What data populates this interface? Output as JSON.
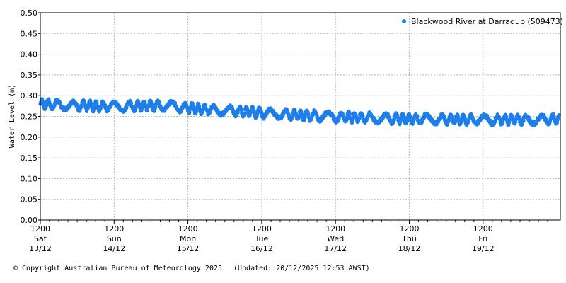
{
  "chart_data": {
    "type": "scatter",
    "title": "",
    "ylabel": "Water Level (m)",
    "xlabel": "",
    "ylim": [
      0,
      0.5
    ],
    "yticks": [
      "0.00",
      "0.05",
      "0.10",
      "0.15",
      "0.20",
      "0.25",
      "0.30",
      "0.35",
      "0.40",
      "0.45",
      "0.50"
    ],
    "xlim": [
      "2025-12-13 12:00",
      "2025-12-20 12:50"
    ],
    "xticks": [
      {
        "time": "1200",
        "day": "Sat",
        "date": "13/12"
      },
      {
        "time": "1200",
        "day": "Sun",
        "date": "14/12"
      },
      {
        "time": "1200",
        "day": "Mon",
        "date": "15/12"
      },
      {
        "time": "1200",
        "day": "Tue",
        "date": "16/12"
      },
      {
        "time": "1200",
        "day": "Wed",
        "date": "17/12"
      },
      {
        "time": "1200",
        "day": "Thu",
        "date": "18/12"
      },
      {
        "time": "1200",
        "day": "Fri",
        "date": "19/12"
      }
    ],
    "grid": true,
    "legend_position": "top-right",
    "series": [
      {
        "name": "Blackwood River at Darradup (509473)",
        "color": "#1f7fe8",
        "x": [
          "13/12 12:00",
          "13/12 18:00",
          "14/12 00:00",
          "14/12 06:00",
          "14/12 12:00",
          "14/12 18:00",
          "15/12 00:00",
          "15/12 06:00",
          "15/12 12:00",
          "15/12 18:00",
          "16/12 00:00",
          "16/12 06:00",
          "16/12 12:00",
          "16/12 18:00",
          "17/12 00:00",
          "17/12 06:00",
          "17/12 12:00",
          "17/12 18:00",
          "18/12 00:00",
          "18/12 06:00",
          "18/12 12:00",
          "18/12 18:00",
          "19/12 00:00",
          "19/12 06:00",
          "19/12 12:00",
          "19/12 18:00",
          "20/12 00:00",
          "20/12 06:00",
          "20/12 12:00"
        ],
        "y": [
          0.28,
          0.278,
          0.276,
          0.275,
          0.274,
          0.275,
          0.276,
          0.275,
          0.271,
          0.267,
          0.264,
          0.262,
          0.258,
          0.256,
          0.253,
          0.251,
          0.249,
          0.248,
          0.246,
          0.245,
          0.244,
          0.244,
          0.243,
          0.243,
          0.242,
          0.242,
          0.242,
          0.242,
          0.243
        ],
        "band": 0.01
      }
    ]
  },
  "footer": {
    "copyright": "© Copyright Australian Bureau of Meteorology 2025",
    "updated": "(Updated: 20/12/2025 12:53 AWST)"
  }
}
